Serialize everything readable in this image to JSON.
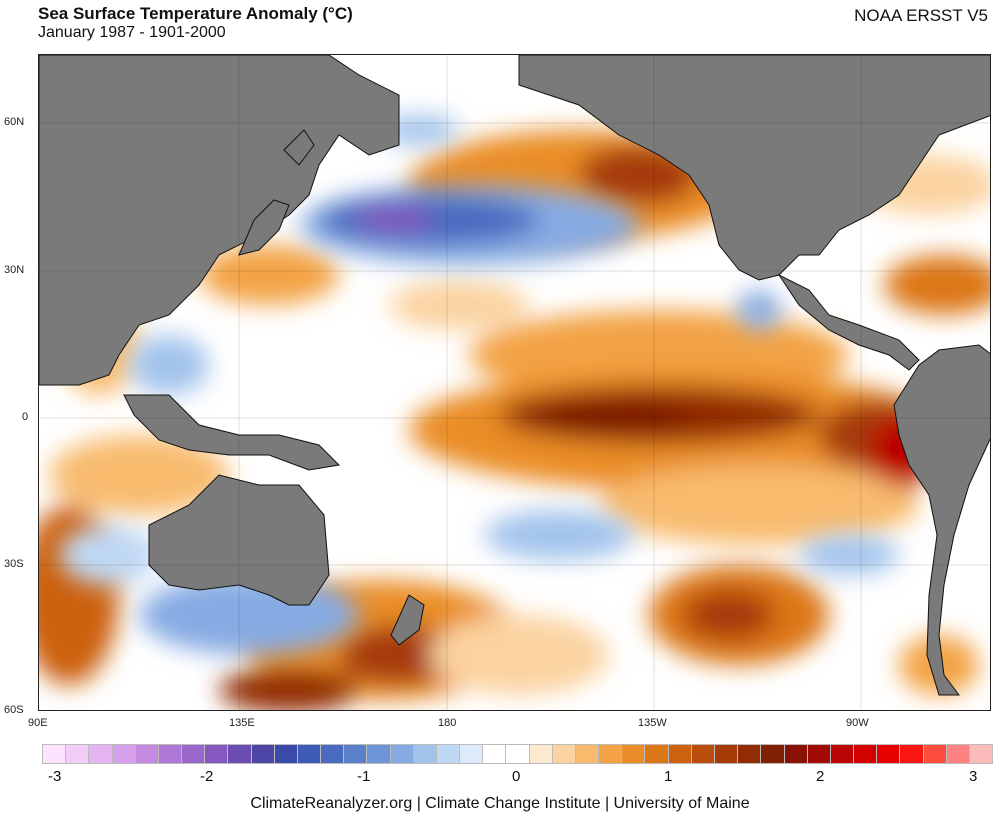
{
  "header": {
    "title": "Sea Surface Temperature Anomaly (°C)",
    "subtitle": "January 1987 - 1901-2000",
    "dataset": "NOAA ERSST V5"
  },
  "map": {
    "region": "Pacific Ocean",
    "lat_ticks": [
      "60N",
      "30N",
      "0",
      "30S",
      "60S"
    ],
    "lon_ticks": [
      "90E",
      "135E",
      "180",
      "135W",
      "90W"
    ]
  },
  "colorbar": {
    "labels": [
      "-3",
      "-2",
      "-1",
      "0",
      "1",
      "2",
      "3"
    ],
    "colors": [
      "#fde3fd",
      "#f3cdf7",
      "#e6b5f1",
      "#d6a0ea",
      "#c48ae0",
      "#b078d6",
      "#9a67cb",
      "#8458be",
      "#6b4cb0",
      "#4e46a6",
      "#3b4aa8",
      "#3d5ab4",
      "#4a6bc0",
      "#5a80cc",
      "#6e95d8",
      "#86abe3",
      "#a2c3ec",
      "#bfd8f4",
      "#dceaf9",
      "#ffffff",
      "#ffffff",
      "#fde9cf",
      "#fbd3a0",
      "#f8bb6e",
      "#f3a345",
      "#ea8d28",
      "#dc7717",
      "#cc6110",
      "#ba4d0b",
      "#a63b07",
      "#922c04",
      "#7f1f02",
      "#8a1204",
      "#a10a05",
      "#bb0404",
      "#d30000",
      "#e80000",
      "#f81710",
      "#fd4e3f",
      "#fd8282",
      "#fdbcbc"
    ]
  },
  "footer": {
    "credit": "ClimateReanalyzer.org | Climate Change Institute | University of Maine"
  }
}
